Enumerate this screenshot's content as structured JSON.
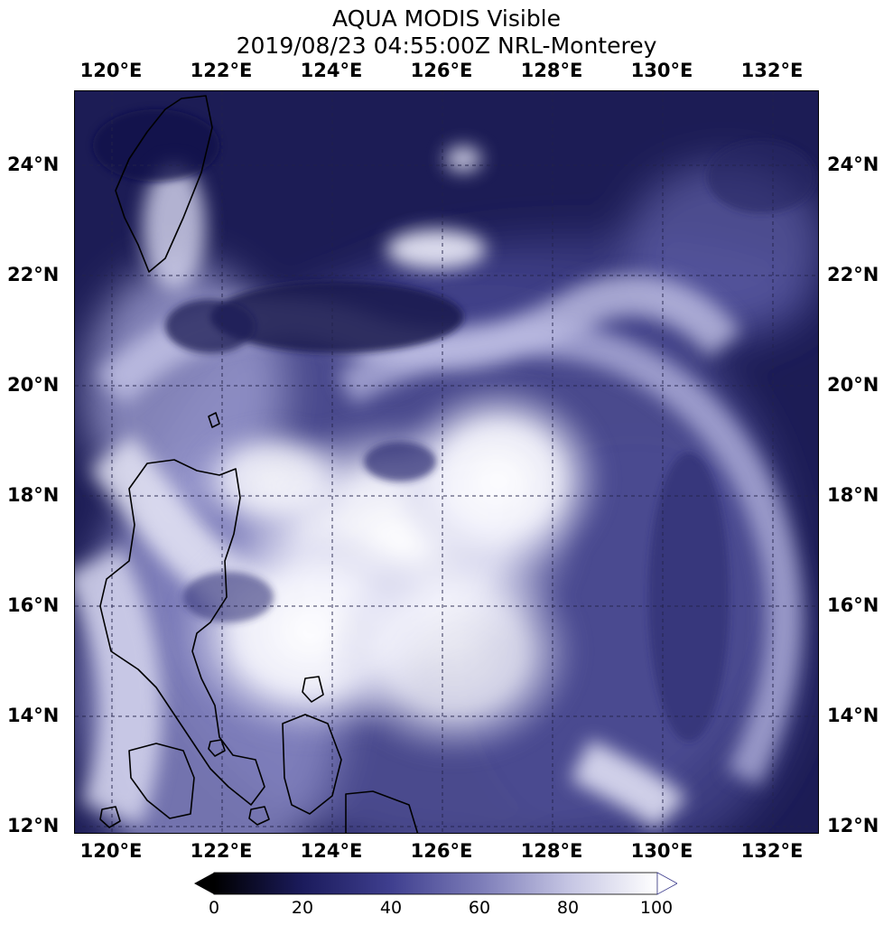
{
  "title": {
    "line1": "AQUA MODIS Visible",
    "line2": "2019/08/23 04:55:00Z NRL-Monterey"
  },
  "map": {
    "lon_range": [
      119.4,
      132.7
    ],
    "lat_range": [
      11.8,
      25.3
    ],
    "lon_ticks": [
      "120°E",
      "122°E",
      "124°E",
      "126°E",
      "128°E",
      "130°E",
      "132°E"
    ],
    "lat_ticks": [
      "24°N",
      "22°N",
      "20°N",
      "18°N",
      "16°N",
      "14°N",
      "12°N"
    ],
    "gridlines": "dashed",
    "coastlines": true,
    "features": [
      "typhoon cloud system",
      "Luzon",
      "Taiwan",
      "Philippine Sea"
    ]
  },
  "colorbar": {
    "ticks": [
      "0",
      "20",
      "40",
      "60",
      "80",
      "100"
    ],
    "range": [
      0,
      100
    ],
    "colors": [
      "#000000",
      "#1b1b5c",
      "#3f3f8f",
      "#7c7cb8",
      "#c5c5e3",
      "#ffffff"
    ],
    "extend": "both"
  },
  "colors": {
    "ocean_dark": "#1a1a52",
    "cloud_white": "#ffffff",
    "cloud_mid": "#8e8ec8",
    "coastline": "#000000",
    "grid": "#222244"
  }
}
